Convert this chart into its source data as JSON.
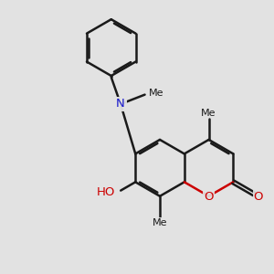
{
  "background_color": "#e2e2e2",
  "bond_color": "#1a1a1a",
  "bond_width": 1.8,
  "O_color": "#cc0000",
  "N_color": "#1a1acc",
  "text_color": "#1a1a1a",
  "font_size": 9.5,
  "fig_width": 3.0,
  "fig_height": 3.0,
  "dpi": 100,
  "xlim": [
    0,
    10
  ],
  "ylim": [
    0,
    10
  ]
}
